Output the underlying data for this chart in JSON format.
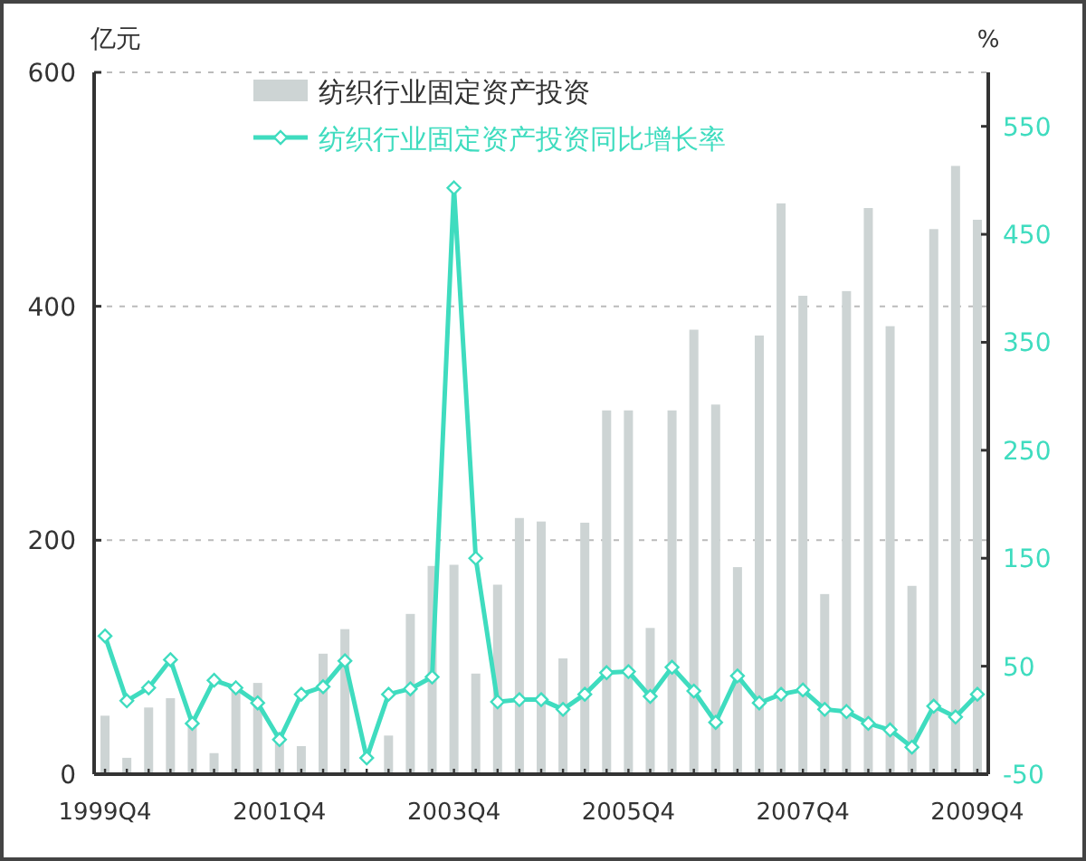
{
  "chart_data": {
    "type": "bar",
    "ylabel": "亿元",
    "y2label": "%",
    "categories": [
      "1999Q4",
      null,
      null,
      null,
      null,
      null,
      null,
      null,
      "2001Q4",
      null,
      null,
      null,
      null,
      null,
      null,
      null,
      "2003Q4",
      null,
      null,
      null,
      null,
      null,
      null,
      null,
      "2005Q4",
      null,
      null,
      null,
      null,
      null,
      null,
      null,
      "2007Q4",
      null,
      null,
      null,
      null,
      null,
      null,
      null,
      "2009Q4"
    ],
    "series": [
      {
        "name": "纺织行业固定资产投资",
        "color": "#cdd4d4",
        "values": [
          50,
          14,
          57,
          65,
          45,
          18,
          75,
          78,
          36,
          24,
          103,
          124,
          null,
          33,
          137,
          178,
          179,
          86,
          162,
          219,
          216,
          99,
          215,
          311,
          311,
          125,
          311,
          380,
          316,
          177,
          375,
          488,
          409,
          154,
          413,
          484,
          383,
          161,
          466,
          520,
          474
        ]
      },
      {
        "name": "纺织行业固定资产投资同比增长率",
        "type": "line",
        "axis": "y2",
        "color": "#3fdcbf",
        "marker": "diamond",
        "values": [
          78,
          18,
          30,
          56,
          -3,
          37,
          30,
          16,
          -18,
          24,
          31,
          55,
          -35,
          24,
          29,
          40,
          493,
          150,
          17,
          19,
          19,
          10,
          24,
          44,
          45,
          22,
          49,
          27,
          -2,
          41,
          16,
          24,
          28,
          10,
          8,
          -3,
          -9,
          -25,
          13,
          3,
          24
        ]
      }
    ],
    "ylim": [
      0,
      600
    ],
    "yticks": [
      0,
      200,
      400,
      600
    ],
    "y2lim": [
      -50,
      600
    ],
    "y2ticks": [
      -50,
      50,
      150,
      250,
      350,
      450,
      550
    ],
    "grid": "y",
    "legend": "top"
  }
}
